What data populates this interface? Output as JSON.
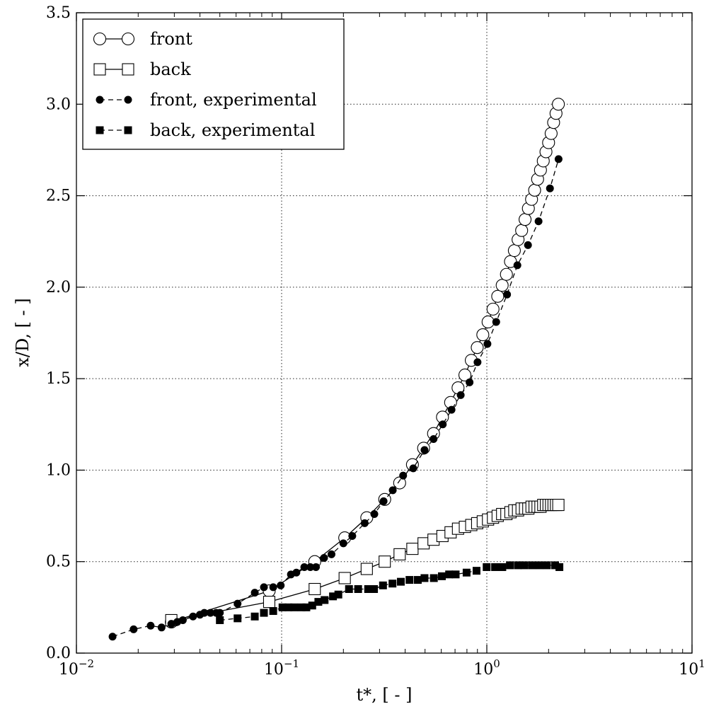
{
  "chart_data": {
    "type": "line",
    "xscale": "log",
    "xlim": [
      0.01,
      10
    ],
    "ylim": [
      0.0,
      3.5
    ],
    "grid": true,
    "legend_position": "top-left",
    "xlabel": "t*, [ - ]",
    "ylabel": "x/D, [ - ]",
    "x_tick_labels": [
      {
        "base": "10",
        "exp": "−2"
      },
      {
        "base": "10",
        "exp": "−1"
      },
      {
        "base": "10",
        "exp": "0"
      },
      {
        "base": "10",
        "exp": "1"
      }
    ],
    "y_tick_labels": [
      "0.0",
      "0.5",
      "1.0",
      "1.5",
      "2.0",
      "2.5",
      "3.0",
      "3.5"
    ],
    "series": [
      {
        "name": "front",
        "marker": "open-circle",
        "line": "solid",
        "x": [
          0.029,
          0.087,
          0.145,
          0.203,
          0.26,
          0.318,
          0.376,
          0.434,
          0.492,
          0.55,
          0.608,
          0.666,
          0.724,
          0.782,
          0.84,
          0.898,
          0.956,
          1.014,
          1.072,
          1.13,
          1.188,
          1.246,
          1.304,
          1.362,
          1.42,
          1.478,
          1.536,
          1.594,
          1.652,
          1.71,
          1.768,
          1.826,
          1.884,
          1.942,
          2.0,
          2.058,
          2.116,
          2.174,
          2.232
        ],
        "y": [
          0.17,
          0.34,
          0.5,
          0.63,
          0.74,
          0.84,
          0.93,
          1.03,
          1.12,
          1.2,
          1.29,
          1.37,
          1.45,
          1.52,
          1.6,
          1.67,
          1.74,
          1.81,
          1.88,
          1.95,
          2.01,
          2.07,
          2.14,
          2.2,
          2.26,
          2.31,
          2.37,
          2.43,
          2.48,
          2.53,
          2.59,
          2.64,
          2.69,
          2.74,
          2.79,
          2.84,
          2.9,
          2.95,
          3.0
        ]
      },
      {
        "name": "back",
        "marker": "open-square",
        "line": "solid",
        "x": [
          0.029,
          0.087,
          0.145,
          0.203,
          0.26,
          0.318,
          0.376,
          0.434,
          0.492,
          0.55,
          0.608,
          0.666,
          0.724,
          0.782,
          0.84,
          0.898,
          0.956,
          1.014,
          1.072,
          1.13,
          1.188,
          1.246,
          1.304,
          1.362,
          1.42,
          1.478,
          1.536,
          1.594,
          1.652,
          1.71,
          1.768,
          1.826,
          1.884,
          1.942,
          2.0,
          2.058,
          2.116,
          2.174,
          2.232
        ],
        "y": [
          0.18,
          0.28,
          0.35,
          0.41,
          0.46,
          0.5,
          0.54,
          0.57,
          0.6,
          0.62,
          0.64,
          0.66,
          0.68,
          0.69,
          0.7,
          0.71,
          0.72,
          0.73,
          0.74,
          0.75,
          0.76,
          0.76,
          0.77,
          0.78,
          0.78,
          0.79,
          0.79,
          0.79,
          0.8,
          0.8,
          0.8,
          0.8,
          0.81,
          0.81,
          0.81,
          0.81,
          0.81,
          0.81,
          0.81
        ]
      },
      {
        "name": "front, experimental",
        "marker": "filled-circle",
        "line": "dashed",
        "x": [
          0.015,
          0.019,
          0.023,
          0.026,
          0.029,
          0.031,
          0.033,
          0.037,
          0.04,
          0.042,
          0.045,
          0.048,
          0.05,
          0.061,
          0.074,
          0.082,
          0.091,
          0.099,
          0.111,
          0.118,
          0.129,
          0.138,
          0.147,
          0.161,
          0.175,
          0.2,
          0.221,
          0.254,
          0.283,
          0.314,
          0.348,
          0.391,
          0.438,
          0.497,
          0.55,
          0.61,
          0.673,
          0.746,
          0.824,
          0.901,
          1.007,
          1.111,
          1.255,
          1.409,
          1.587,
          1.787,
          2.031,
          2.237
        ],
        "y": [
          0.09,
          0.13,
          0.15,
          0.14,
          0.16,
          0.17,
          0.18,
          0.2,
          0.21,
          0.22,
          0.22,
          0.22,
          0.22,
          0.27,
          0.33,
          0.36,
          0.36,
          0.37,
          0.43,
          0.44,
          0.47,
          0.47,
          0.47,
          0.52,
          0.54,
          0.6,
          0.64,
          0.71,
          0.76,
          0.83,
          0.89,
          0.97,
          1.01,
          1.11,
          1.17,
          1.25,
          1.33,
          1.41,
          1.48,
          1.59,
          1.69,
          1.81,
          1.96,
          2.12,
          2.23,
          2.36,
          2.54,
          2.7
        ]
      },
      {
        "name": "back, experimental",
        "marker": "filled-square",
        "line": "dashed",
        "x": [
          0.05,
          0.061,
          0.074,
          0.082,
          0.091,
          0.101,
          0.108,
          0.115,
          0.125,
          0.132,
          0.141,
          0.151,
          0.162,
          0.178,
          0.189,
          0.213,
          0.236,
          0.264,
          0.282,
          0.312,
          0.347,
          0.381,
          0.42,
          0.461,
          0.497,
          0.552,
          0.604,
          0.655,
          0.705,
          0.797,
          0.891,
          0.998,
          1.097,
          1.19,
          1.296,
          1.418,
          1.521,
          1.66,
          1.805,
          1.962,
          2.153,
          2.258
        ],
        "y": [
          0.18,
          0.19,
          0.2,
          0.22,
          0.23,
          0.25,
          0.25,
          0.25,
          0.25,
          0.25,
          0.26,
          0.28,
          0.29,
          0.31,
          0.32,
          0.35,
          0.35,
          0.35,
          0.35,
          0.37,
          0.38,
          0.39,
          0.4,
          0.4,
          0.41,
          0.41,
          0.42,
          0.43,
          0.43,
          0.44,
          0.45,
          0.47,
          0.47,
          0.47,
          0.48,
          0.48,
          0.48,
          0.48,
          0.48,
          0.48,
          0.48,
          0.47
        ]
      }
    ]
  }
}
